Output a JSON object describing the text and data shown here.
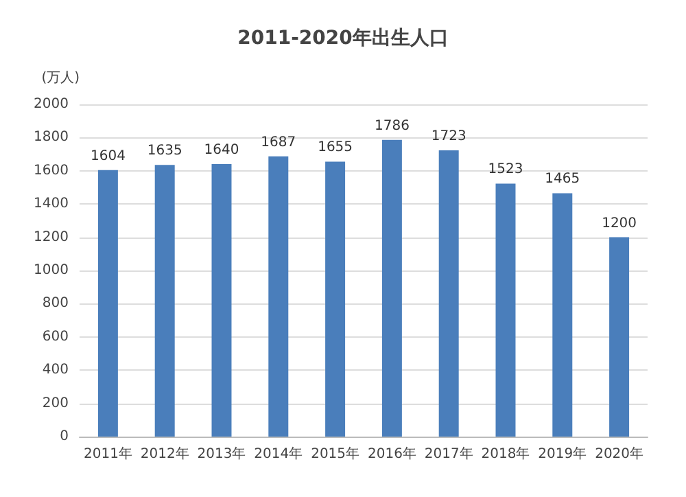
{
  "chart_data": {
    "type": "bar",
    "title": "2011-2020年出生人口",
    "ylabel": "(万人)",
    "categories": [
      "2011年",
      "2012年",
      "2013年",
      "2014年",
      "2015年",
      "2016年",
      "2017年",
      "2018年",
      "2019年",
      "2020年"
    ],
    "values": [
      1604,
      1635,
      1640,
      1687,
      1655,
      1786,
      1723,
      1523,
      1465,
      1200
    ],
    "color": "#4a7ebb",
    "ylim": [
      0,
      2000
    ],
    "yticks": [
      0,
      200,
      400,
      600,
      800,
      1000,
      1200,
      1400,
      1600,
      1800,
      2000
    ],
    "grid": "y",
    "data_labels": true
  }
}
